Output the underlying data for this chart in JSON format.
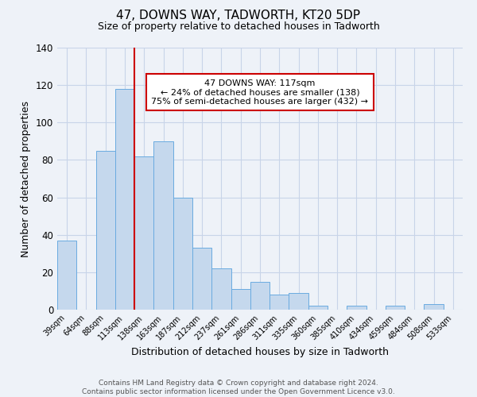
{
  "title": "47, DOWNS WAY, TADWORTH, KT20 5DP",
  "subtitle": "Size of property relative to detached houses in Tadworth",
  "xlabel": "Distribution of detached houses by size in Tadworth",
  "ylabel": "Number of detached properties",
  "bar_labels": [
    "39sqm",
    "64sqm",
    "88sqm",
    "113sqm",
    "138sqm",
    "163sqm",
    "187sqm",
    "212sqm",
    "237sqm",
    "261sqm",
    "286sqm",
    "311sqm",
    "335sqm",
    "360sqm",
    "385sqm",
    "410sqm",
    "434sqm",
    "459sqm",
    "484sqm",
    "508sqm",
    "533sqm"
  ],
  "bar_heights": [
    37,
    0,
    85,
    118,
    82,
    90,
    60,
    33,
    22,
    11,
    15,
    8,
    9,
    2,
    0,
    2,
    0,
    2,
    0,
    3,
    0
  ],
  "bar_color": "#c5d8ed",
  "bar_edge_color": "#6aabe0",
  "vline_color": "#cc0000",
  "annotation_title": "47 DOWNS WAY: 117sqm",
  "annotation_line1": "← 24% of detached houses are smaller (138)",
  "annotation_line2": "75% of semi-detached houses are larger (432) →",
  "annotation_box_color": "#ffffff",
  "annotation_border_color": "#cc0000",
  "ylim": [
    0,
    140
  ],
  "yticks": [
    0,
    20,
    40,
    60,
    80,
    100,
    120,
    140
  ],
  "footnote1": "Contains HM Land Registry data © Crown copyright and database right 2024.",
  "footnote2": "Contains public sector information licensed under the Open Government Licence v3.0.",
  "bg_color": "#eef2f8",
  "grid_color": "#c8d4e8"
}
